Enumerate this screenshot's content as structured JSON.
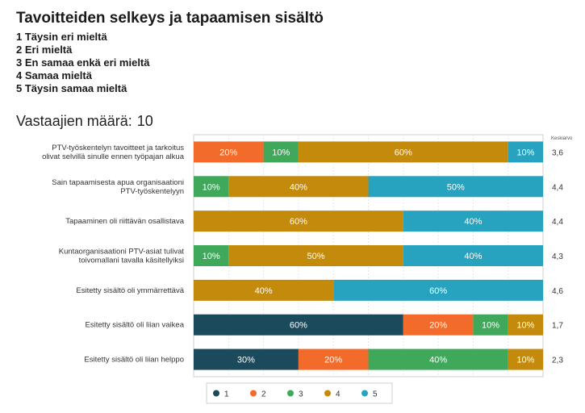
{
  "page": {
    "title": "Tavoitteiden selkeys ja tapaamisen sisältö",
    "scale": [
      "1 Täysin eri mieltä",
      "2 Eri mieltä",
      "3 En samaa enkä eri mieltä",
      "4 Samaa mieltä",
      "5 Täysin samaa mieltä"
    ],
    "respondents_label": "Vastaajien määrä:",
    "respondents_value": "10"
  },
  "chart_data": {
    "type": "bar",
    "orientation": "horizontal",
    "stacked": true,
    "xlim": [
      0,
      100
    ],
    "unit": "%",
    "mean_header": "Keskiarvo",
    "categories": [
      "PTV-työskentelyn tavoitteet ja tarkoitus olivat selvillä sinulle ennen työpajan alkua",
      "Sain tapaamisesta apua organisaationi PTV-työskentelyyn",
      "Tapaaminen oli riittävän osallistava",
      "Kuntaorganisaationi PTV-asiat tulivat toivomallani tavalla käsitellyiksi",
      "Esitetty sisältö oli ymmärrettävä",
      "Esitetty sisältö oli liian vaikea",
      "Esitetty sisältö oli liian helppo"
    ],
    "series": [
      {
        "name": "1",
        "color": "#1b4a5c",
        "values": [
          0,
          0,
          0,
          0,
          0,
          60,
          30
        ]
      },
      {
        "name": "2",
        "color": "#f26b2a",
        "values": [
          20,
          0,
          0,
          0,
          0,
          20,
          20
        ]
      },
      {
        "name": "3",
        "color": "#3fa85a",
        "values": [
          10,
          10,
          0,
          10,
          0,
          10,
          40
        ]
      },
      {
        "name": "4",
        "color": "#c48a0c",
        "values": [
          60,
          40,
          60,
          50,
          40,
          10,
          10
        ]
      },
      {
        "name": "5",
        "color": "#27a3bf",
        "values": [
          10,
          50,
          40,
          40,
          60,
          0,
          0
        ]
      }
    ],
    "means": [
      "3,6",
      "4,4",
      "4,4",
      "4,3",
      "4,6",
      "1,7",
      "2,3"
    ],
    "legend_position": "bottom"
  }
}
